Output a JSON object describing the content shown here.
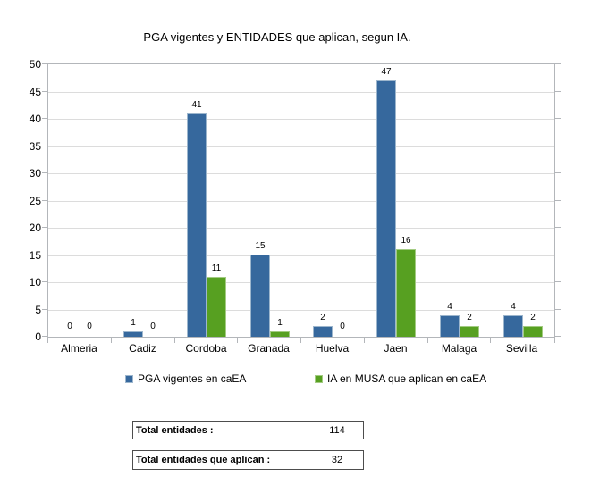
{
  "chart_data": {
    "type": "bar",
    "title": "PGA vigentes y ENTIDADES que aplican, segun IA.",
    "categories": [
      "Almeria",
      "Cadiz",
      "Cordoba",
      "Granada",
      "Huelva",
      "Jaen",
      "Malaga",
      "Sevilla"
    ],
    "series": [
      {
        "name": "PGA vigentes en caEA",
        "color": "#36689D",
        "border_color": "#9db6cd",
        "values": [
          0,
          1,
          41,
          15,
          2,
          47,
          4,
          4
        ]
      },
      {
        "name": "IA en MUSA que aplican en caEA",
        "color": "#57A021",
        "border_color": "#a3cb82",
        "values": [
          0,
          0,
          11,
          1,
          0,
          16,
          2,
          2
        ]
      }
    ],
    "xlabel": "",
    "ylabel": "",
    "ylim": [
      0,
      50
    ],
    "ytick_step": 5,
    "grid": true,
    "grid_color": "#dcdcdc",
    "axis_color": "#b3b6ba",
    "legend_position": "bottom",
    "data_labels": true
  },
  "totals": [
    {
      "label": "Total entidades :",
      "value": "114"
    },
    {
      "label": "Total entidades que aplican :",
      "value": "32"
    }
  ]
}
